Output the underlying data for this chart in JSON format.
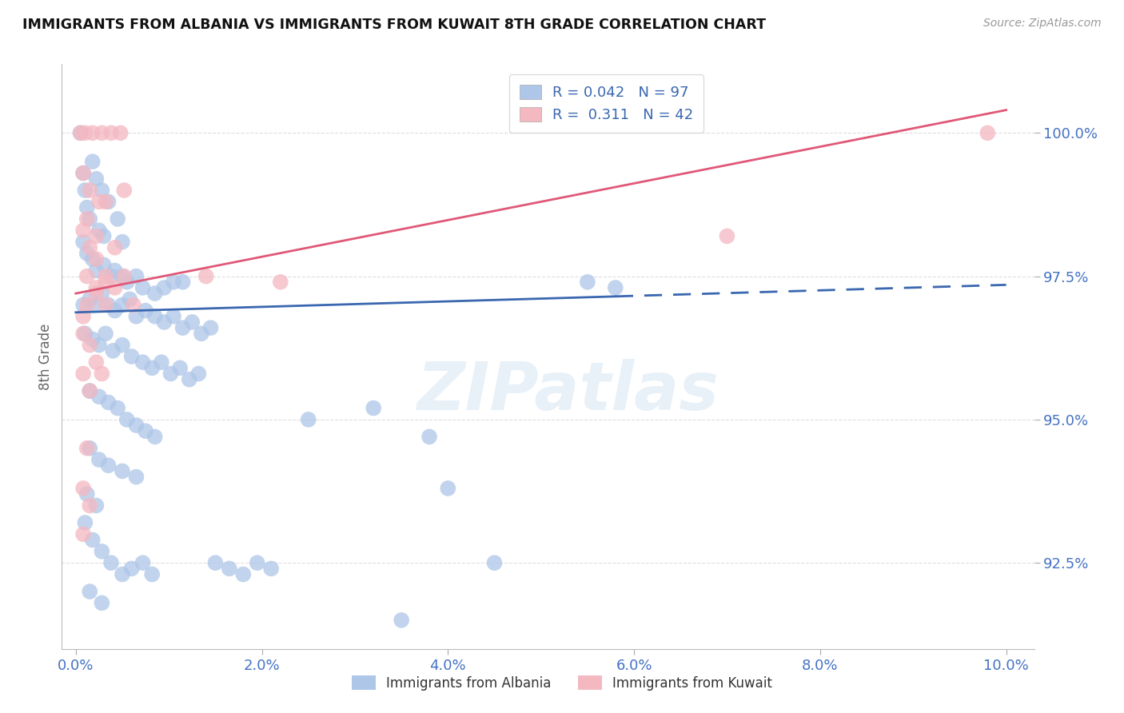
{
  "title": "IMMIGRANTS FROM ALBANIA VS IMMIGRANTS FROM KUWAIT 8TH GRADE CORRELATION CHART",
  "source": "Source: ZipAtlas.com",
  "ylabel": "8th Grade",
  "x_tick_labels": [
    "0.0%",
    "2.0%",
    "4.0%",
    "6.0%",
    "8.0%",
    "10.0%"
  ],
  "x_tick_values": [
    0.0,
    2.0,
    4.0,
    6.0,
    8.0,
    10.0
  ],
  "y_tick_labels": [
    "92.5%",
    "95.0%",
    "97.5%",
    "100.0%"
  ],
  "y_tick_values": [
    92.5,
    95.0,
    97.5,
    100.0
  ],
  "xlim": [
    -0.15,
    10.3
  ],
  "ylim": [
    91.0,
    101.2
  ],
  "albania_color": "#aec6e8",
  "kuwait_color": "#f4b8c1",
  "albania_trend_color": "#3a67b0",
  "kuwait_trend_color": "#e05878",
  "grid_color": "#c8c8c8",
  "watermark_text": "ZIPatlas",
  "legend_r1": "R = 0.042   N = 97",
  "legend_r2": "R =  0.311   N = 42",
  "albania_trend_x0": 0.0,
  "albania_trend_y0": 96.87,
  "albania_trend_x1": 10.0,
  "albania_trend_y1": 97.35,
  "albania_solid_end": 5.8,
  "kuwait_trend_x0": 0.0,
  "kuwait_trend_y0": 97.2,
  "kuwait_trend_x1": 10.0,
  "kuwait_trend_y1": 100.4,
  "albania_scatter": [
    [
      0.05,
      100.0
    ],
    [
      0.08,
      99.3
    ],
    [
      0.1,
      99.0
    ],
    [
      0.12,
      98.7
    ],
    [
      0.18,
      99.5
    ],
    [
      0.22,
      99.2
    ],
    [
      0.28,
      99.0
    ],
    [
      0.15,
      98.5
    ],
    [
      0.25,
      98.3
    ],
    [
      0.35,
      98.8
    ],
    [
      0.3,
      98.2
    ],
    [
      0.45,
      98.5
    ],
    [
      0.5,
      98.1
    ],
    [
      0.08,
      98.1
    ],
    [
      0.12,
      97.9
    ],
    [
      0.18,
      97.8
    ],
    [
      0.22,
      97.6
    ],
    [
      0.3,
      97.7
    ],
    [
      0.38,
      97.5
    ],
    [
      0.42,
      97.6
    ],
    [
      0.5,
      97.5
    ],
    [
      0.55,
      97.4
    ],
    [
      0.65,
      97.5
    ],
    [
      0.72,
      97.3
    ],
    [
      0.85,
      97.2
    ],
    [
      0.95,
      97.3
    ],
    [
      1.05,
      97.4
    ],
    [
      1.15,
      97.4
    ],
    [
      0.08,
      97.0
    ],
    [
      0.15,
      97.1
    ],
    [
      0.2,
      97.0
    ],
    [
      0.28,
      97.2
    ],
    [
      0.35,
      97.0
    ],
    [
      0.42,
      96.9
    ],
    [
      0.5,
      97.0
    ],
    [
      0.58,
      97.1
    ],
    [
      0.65,
      96.8
    ],
    [
      0.75,
      96.9
    ],
    [
      0.85,
      96.8
    ],
    [
      0.95,
      96.7
    ],
    [
      1.05,
      96.8
    ],
    [
      1.15,
      96.6
    ],
    [
      1.25,
      96.7
    ],
    [
      1.35,
      96.5
    ],
    [
      1.45,
      96.6
    ],
    [
      0.1,
      96.5
    ],
    [
      0.18,
      96.4
    ],
    [
      0.25,
      96.3
    ],
    [
      0.32,
      96.5
    ],
    [
      0.4,
      96.2
    ],
    [
      0.5,
      96.3
    ],
    [
      0.6,
      96.1
    ],
    [
      0.72,
      96.0
    ],
    [
      0.82,
      95.9
    ],
    [
      0.92,
      96.0
    ],
    [
      1.02,
      95.8
    ],
    [
      1.12,
      95.9
    ],
    [
      1.22,
      95.7
    ],
    [
      1.32,
      95.8
    ],
    [
      0.15,
      95.5
    ],
    [
      0.25,
      95.4
    ],
    [
      0.35,
      95.3
    ],
    [
      0.45,
      95.2
    ],
    [
      0.55,
      95.0
    ],
    [
      0.65,
      94.9
    ],
    [
      0.75,
      94.8
    ],
    [
      0.85,
      94.7
    ],
    [
      0.15,
      94.5
    ],
    [
      0.25,
      94.3
    ],
    [
      0.35,
      94.2
    ],
    [
      0.5,
      94.1
    ],
    [
      0.65,
      94.0
    ],
    [
      0.12,
      93.7
    ],
    [
      0.22,
      93.5
    ],
    [
      0.1,
      93.2
    ],
    [
      0.18,
      92.9
    ],
    [
      0.28,
      92.7
    ],
    [
      0.38,
      92.5
    ],
    [
      0.5,
      92.3
    ],
    [
      0.6,
      92.4
    ],
    [
      0.72,
      92.5
    ],
    [
      0.82,
      92.3
    ],
    [
      0.15,
      92.0
    ],
    [
      0.28,
      91.8
    ],
    [
      1.5,
      92.5
    ],
    [
      1.65,
      92.4
    ],
    [
      1.8,
      92.3
    ],
    [
      1.95,
      92.5
    ],
    [
      2.1,
      92.4
    ],
    [
      2.5,
      95.0
    ],
    [
      3.2,
      95.2
    ],
    [
      3.8,
      94.7
    ],
    [
      4.0,
      93.8
    ],
    [
      5.5,
      97.4
    ],
    [
      5.8,
      97.3
    ],
    [
      4.5,
      92.5
    ],
    [
      3.5,
      91.5
    ]
  ],
  "kuwait_scatter": [
    [
      0.05,
      100.0
    ],
    [
      0.1,
      100.0
    ],
    [
      0.18,
      100.0
    ],
    [
      0.28,
      100.0
    ],
    [
      0.38,
      100.0
    ],
    [
      0.48,
      100.0
    ],
    [
      0.08,
      99.3
    ],
    [
      0.15,
      99.0
    ],
    [
      0.25,
      98.8
    ],
    [
      0.08,
      98.3
    ],
    [
      0.15,
      98.0
    ],
    [
      0.22,
      97.8
    ],
    [
      0.12,
      97.5
    ],
    [
      0.22,
      97.3
    ],
    [
      0.32,
      97.5
    ],
    [
      0.12,
      97.0
    ],
    [
      0.22,
      97.2
    ],
    [
      0.32,
      97.0
    ],
    [
      0.42,
      97.3
    ],
    [
      0.52,
      97.5
    ],
    [
      0.62,
      97.0
    ],
    [
      0.08,
      96.5
    ],
    [
      0.15,
      96.3
    ],
    [
      0.22,
      96.0
    ],
    [
      0.32,
      97.4
    ],
    [
      0.08,
      95.8
    ],
    [
      0.15,
      95.5
    ],
    [
      0.12,
      94.5
    ],
    [
      0.08,
      93.8
    ],
    [
      0.15,
      93.5
    ],
    [
      0.08,
      93.0
    ],
    [
      0.12,
      98.5
    ],
    [
      0.22,
      98.2
    ],
    [
      0.32,
      98.8
    ],
    [
      0.42,
      98.0
    ],
    [
      0.52,
      99.0
    ],
    [
      7.0,
      98.2
    ],
    [
      9.8,
      100.0
    ],
    [
      1.4,
      97.5
    ],
    [
      2.2,
      97.4
    ],
    [
      0.08,
      96.8
    ],
    [
      0.28,
      95.8
    ]
  ]
}
